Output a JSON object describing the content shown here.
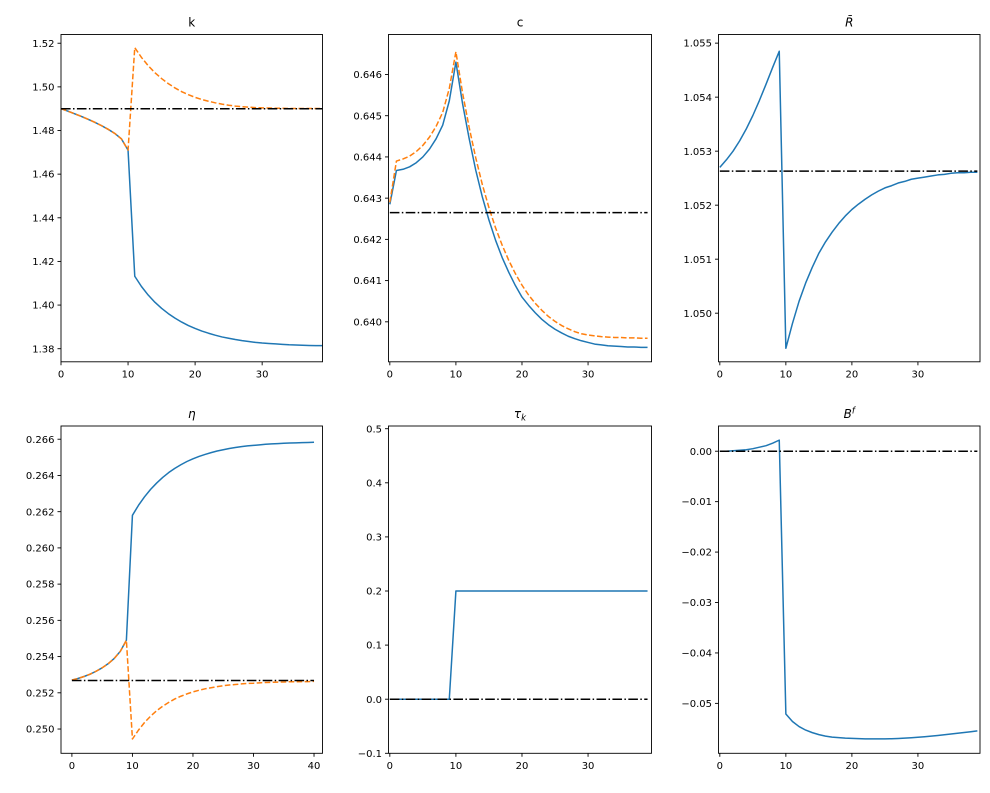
{
  "figure": {
    "background": "#ffffff",
    "grid": false,
    "legend": null,
    "colors": {
      "solid_line": "#1f77b4",
      "dashed_line": "#ff7f0e",
      "reference_line": "#000000"
    }
  },
  "chart_data": [
    {
      "id": "k",
      "type": "line",
      "title_parts": [
        {
          "text": "k",
          "italic": false
        }
      ],
      "xlim": [
        0,
        39
      ],
      "ylim": [
        1.374,
        1.524
      ],
      "xticks": [
        0,
        10,
        20,
        30
      ],
      "yticks": [
        1.38,
        1.4,
        1.42,
        1.44,
        1.46,
        1.48,
        1.5,
        1.52
      ],
      "ydecimals": 2,
      "x_start": 0,
      "x_step": 1,
      "reference": {
        "name": "steady-state",
        "value": 1.49,
        "style": "dashdot",
        "color": "#000000"
      },
      "series": [
        {
          "name": "solid-blue",
          "style": "solid",
          "color": "#1f77b4",
          "values": [
            1.49,
            1.4889,
            1.4877,
            1.4865,
            1.4852,
            1.4838,
            1.4823,
            1.4806,
            1.4787,
            1.4762,
            1.471,
            1.4132,
            1.4085,
            1.4046,
            1.4013,
            1.3985,
            1.3961,
            1.394,
            1.3922,
            1.3906,
            1.3893,
            1.3881,
            1.3871,
            1.3862,
            1.3854,
            1.3848,
            1.3842,
            1.3837,
            1.3833,
            1.3829,
            1.3826,
            1.3824,
            1.3822,
            1.382,
            1.3818,
            1.3817,
            1.3816,
            1.3815,
            1.3814,
            1.3814
          ]
        },
        {
          "name": "dashed-orange",
          "style": "dashed",
          "color": "#ff7f0e",
          "values": [
            1.49,
            1.4889,
            1.4877,
            1.4865,
            1.4852,
            1.4838,
            1.4823,
            1.4806,
            1.4787,
            1.4762,
            1.471,
            1.518,
            1.5135,
            1.5097,
            1.5065,
            1.5038,
            1.5015,
            1.4995,
            1.4978,
            1.4964,
            1.4952,
            1.4942,
            1.4934,
            1.4927,
            1.4921,
            1.4916,
            1.4912,
            1.4909,
            1.4907,
            1.4905,
            1.4904,
            1.4903,
            1.4902,
            1.4902,
            1.4901,
            1.4901,
            1.4901,
            1.4901,
            1.4901,
            1.4901
          ]
        }
      ]
    },
    {
      "id": "c",
      "type": "line",
      "title_parts": [
        {
          "text": "c",
          "italic": false
        }
      ],
      "xlim": [
        -0.2,
        39.6
      ],
      "ylim": [
        0.63903,
        0.64697
      ],
      "xticks": [
        0,
        10,
        20,
        30
      ],
      "yticks": [
        0.64,
        0.641,
        0.642,
        0.643,
        0.644,
        0.645,
        0.646
      ],
      "ydecimals": 3,
      "x_start": 0,
      "x_step": 1,
      "reference": {
        "name": "steady-state",
        "value": 0.64265,
        "style": "dashdot",
        "color": "#000000"
      },
      "series": [
        {
          "name": "solid-blue",
          "style": "solid",
          "color": "#1f77b4",
          "values": [
            0.64285,
            0.64367,
            0.6437,
            0.64376,
            0.64386,
            0.644,
            0.64419,
            0.64444,
            0.64477,
            0.64536,
            0.6463,
            0.6453,
            0.64445,
            0.64368,
            0.64303,
            0.64247,
            0.64198,
            0.64156,
            0.6412,
            0.64088,
            0.6406,
            0.6404,
            0.64022,
            0.64006,
            0.63993,
            0.63982,
            0.63973,
            0.63965,
            0.63959,
            0.63954,
            0.6395,
            0.63946,
            0.63944,
            0.63942,
            0.63941,
            0.6394,
            0.63939,
            0.63939,
            0.63938,
            0.63938
          ]
        },
        {
          "name": "dashed-orange",
          "style": "dashed",
          "color": "#ff7f0e",
          "values": [
            0.6429,
            0.6439,
            0.64395,
            0.64402,
            0.64413,
            0.64428,
            0.64448,
            0.64474,
            0.64508,
            0.64566,
            0.64655,
            0.64556,
            0.64472,
            0.64398,
            0.64333,
            0.64277,
            0.64228,
            0.64186,
            0.64149,
            0.64117,
            0.64089,
            0.64065,
            0.64045,
            0.64028,
            0.64013,
            0.64001,
            0.63991,
            0.63983,
            0.63976,
            0.63971,
            0.63968,
            0.63966,
            0.63964,
            0.63963,
            0.63962,
            0.63962,
            0.63961,
            0.63961,
            0.6396,
            0.6396
          ]
        }
      ]
    },
    {
      "id": "Rbar",
      "type": "line",
      "title_parts": [
        {
          "text": "R̄",
          "italic": true
        }
      ],
      "xlim": [
        -0.2,
        39.4
      ],
      "ylim": [
        1.0491,
        1.05516
      ],
      "xticks": [
        0,
        10,
        20,
        30
      ],
      "yticks": [
        1.05,
        1.051,
        1.052,
        1.053,
        1.054,
        1.055
      ],
      "ydecimals": 3,
      "x_start": 0,
      "x_step": 1,
      "reference": {
        "name": "steady-state",
        "value": 1.05263,
        "style": "dashdot",
        "color": "#000000"
      },
      "series": [
        {
          "name": "solid-blue",
          "style": "solid",
          "color": "#1f77b4",
          "values": [
            1.0527,
            1.05284,
            1.053,
            1.05319,
            1.05341,
            1.05366,
            1.05394,
            1.05424,
            1.05455,
            1.05485,
            1.04935,
            1.04981,
            1.05022,
            1.05056,
            1.05085,
            1.05111,
            1.05132,
            1.0515,
            1.05166,
            1.0518,
            1.05192,
            1.05202,
            1.05211,
            1.05219,
            1.05226,
            1.05232,
            1.05236,
            1.05241,
            1.05244,
            1.05248,
            1.0525,
            1.05252,
            1.05254,
            1.05256,
            1.05257,
            1.05259,
            1.0526,
            1.0526,
            1.05261,
            1.05261
          ]
        }
      ]
    },
    {
      "id": "eta",
      "type": "line",
      "title_parts": [
        {
          "text": "η",
          "italic": true
        }
      ],
      "xlim": [
        -1.8,
        41.4
      ],
      "ylim": [
        0.24866,
        0.26673
      ],
      "xticks": [
        0,
        10,
        20,
        30,
        40
      ],
      "yticks": [
        0.25,
        0.252,
        0.254,
        0.256,
        0.258,
        0.26,
        0.262,
        0.264,
        0.266
      ],
      "ydecimals": 3,
      "x_start": 0,
      "x_step": 1,
      "reference": {
        "name": "steady-state",
        "value": 0.25268,
        "style": "dashdot",
        "color": "#000000"
      },
      "series": [
        {
          "name": "solid-blue",
          "style": "solid",
          "color": "#1f77b4",
          "values": [
            0.2527,
            0.25279,
            0.2529,
            0.25303,
            0.25319,
            0.25338,
            0.25361,
            0.2539,
            0.25429,
            0.2549,
            0.2618,
            0.26235,
            0.26282,
            0.26323,
            0.26358,
            0.26389,
            0.26416,
            0.26439,
            0.26459,
            0.26477,
            0.26492,
            0.26505,
            0.26516,
            0.26526,
            0.26535,
            0.26542,
            0.26549,
            0.26554,
            0.26559,
            0.26563,
            0.26566,
            0.26569,
            0.26572,
            0.26574,
            0.26576,
            0.26578,
            0.26579,
            0.2658,
            0.26581,
            0.26582,
            0.26583
          ]
        },
        {
          "name": "dashed-orange",
          "style": "dashed",
          "color": "#ff7f0e",
          "values": [
            0.2527,
            0.25279,
            0.2529,
            0.25303,
            0.25319,
            0.25338,
            0.25361,
            0.2539,
            0.25429,
            0.2549,
            0.24945,
            0.24994,
            0.25036,
            0.25071,
            0.25101,
            0.25126,
            0.25147,
            0.25166,
            0.25181,
            0.25194,
            0.25205,
            0.25214,
            0.25222,
            0.25228,
            0.25234,
            0.25239,
            0.25243,
            0.25246,
            0.25249,
            0.25252,
            0.25253,
            0.25255,
            0.25257,
            0.25258,
            0.25259,
            0.2526,
            0.25261,
            0.25261,
            0.25262,
            0.25262,
            0.25263
          ]
        }
      ]
    },
    {
      "id": "tauk",
      "type": "line",
      "title_parts": [
        {
          "text": "τ",
          "italic": true
        },
        {
          "text": "k",
          "italic": true,
          "script": "sub"
        }
      ],
      "xlim": [
        -0.2,
        39.6
      ],
      "ylim": [
        -0.1,
        0.505
      ],
      "xticks": [
        0,
        10,
        20,
        30
      ],
      "yticks": [
        -0.1,
        0.0,
        0.1,
        0.2,
        0.3,
        0.4,
        0.5
      ],
      "ydecimals": 1,
      "x_start": 0,
      "x_step": 1,
      "reference": {
        "name": "steady-state",
        "value": 0.0,
        "style": "dashdot",
        "color": "#000000"
      },
      "series": [
        {
          "name": "solid-blue",
          "style": "solid",
          "color": "#1f77b4",
          "values": [
            0,
            0,
            0,
            0,
            0,
            0,
            0,
            0,
            0,
            0,
            0.2,
            0.2,
            0.2,
            0.2,
            0.2,
            0.2,
            0.2,
            0.2,
            0.2,
            0.2,
            0.2,
            0.2,
            0.2,
            0.2,
            0.2,
            0.2,
            0.2,
            0.2,
            0.2,
            0.2,
            0.2,
            0.2,
            0.2,
            0.2,
            0.2,
            0.2,
            0.2,
            0.2,
            0.2,
            0.2
          ]
        }
      ]
    },
    {
      "id": "Bf",
      "type": "line",
      "title_parts": [
        {
          "text": "B",
          "italic": true
        },
        {
          "text": "f",
          "italic": true,
          "script": "sup"
        }
      ],
      "xlim": [
        -0.2,
        39.4
      ],
      "ylim": [
        -0.0599,
        0.005
      ],
      "xticks": [
        0,
        10,
        20,
        30
      ],
      "yticks": [
        -0.05,
        -0.04,
        -0.03,
        -0.02,
        -0.01,
        0.0
      ],
      "ydecimals": 2,
      "x_start": 0,
      "x_step": 1,
      "reference": {
        "name": "steady-state",
        "value": 0.0,
        "style": "dashdot",
        "color": "#000000"
      },
      "series": [
        {
          "name": "solid-blue",
          "style": "solid",
          "color": "#1f77b4",
          "values": [
            0.0,
            0.0,
            0.0001,
            0.0002,
            0.0003,
            0.0005,
            0.0008,
            0.0011,
            0.0016,
            0.0022,
            -0.0521,
            -0.0536,
            -0.0546,
            -0.0553,
            -0.0558,
            -0.0562,
            -0.0565,
            -0.0567,
            -0.0568,
            -0.0569,
            -0.05695,
            -0.057,
            -0.05703,
            -0.05704,
            -0.05705,
            -0.05704,
            -0.05701,
            -0.05696,
            -0.0569,
            -0.05682,
            -0.05672,
            -0.05661,
            -0.05649,
            -0.05636,
            -0.05622,
            -0.05608,
            -0.05593,
            -0.05578,
            -0.05562,
            -0.05546
          ]
        }
      ]
    }
  ]
}
